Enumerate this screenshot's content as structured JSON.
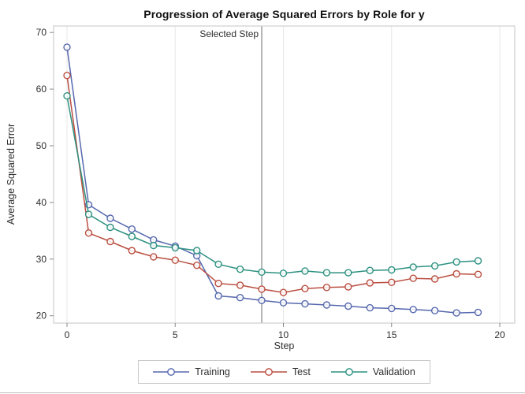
{
  "window": {
    "title": "Progression of Average Squared Errors by Role for y"
  },
  "chart_data": {
    "type": "line",
    "title": "Progression of Average Squared Errors by Role for y",
    "xlabel": "Step",
    "ylabel": "Average Squared Error",
    "x_ticks": [
      0,
      5,
      10,
      15,
      20
    ],
    "y_ticks": [
      20,
      30,
      40,
      50,
      60,
      70
    ],
    "xlim": [
      -0.6,
      20.7
    ],
    "ylim": [
      18.7,
      71.2
    ],
    "grid": "vertical-at-x-ticks",
    "legend_position": "bottom-center",
    "reference_line": {
      "x": 9,
      "label": "Selected Step"
    },
    "x": [
      0,
      1,
      2,
      3,
      4,
      5,
      6,
      7,
      8,
      9,
      10,
      11,
      12,
      13,
      14,
      15,
      16,
      17,
      18,
      19
    ],
    "series": [
      {
        "name": "Training",
        "color": "#5668AE",
        "marker": "open-circle",
        "values": [
          67.4,
          39.6,
          37.2,
          35.3,
          33.4,
          32.3,
          30.6,
          23.5,
          23.2,
          22.7,
          22.3,
          22.1,
          21.9,
          21.7,
          21.4,
          21.3,
          21.1,
          20.9,
          20.5,
          20.6
        ]
      },
      {
        "name": "Test",
        "color": "#BA4E40",
        "marker": "open-circle",
        "values": [
          62.4,
          34.6,
          33.1,
          31.5,
          30.4,
          29.8,
          28.9,
          25.7,
          25.4,
          24.7,
          24.1,
          24.8,
          25.0,
          25.1,
          25.8,
          25.9,
          26.6,
          26.5,
          27.4,
          27.3
        ]
      },
      {
        "name": "Validation",
        "color": "#2D9181",
        "marker": "open-circle",
        "values": [
          58.8,
          37.9,
          35.6,
          34.0,
          32.4,
          32.0,
          31.5,
          29.1,
          28.2,
          27.7,
          27.5,
          27.9,
          27.6,
          27.6,
          28.0,
          28.1,
          28.6,
          28.8,
          29.5,
          29.7
        ]
      }
    ]
  },
  "colors": {
    "frame": "#cfcfcf",
    "gridline": "#e7e7e7",
    "reference_line": "#a3a3a3",
    "tick": "#8a8a8a",
    "tick_label": "#2e2e2e",
    "title_text": "#111111",
    "legend_border": "#c9c9c9"
  }
}
